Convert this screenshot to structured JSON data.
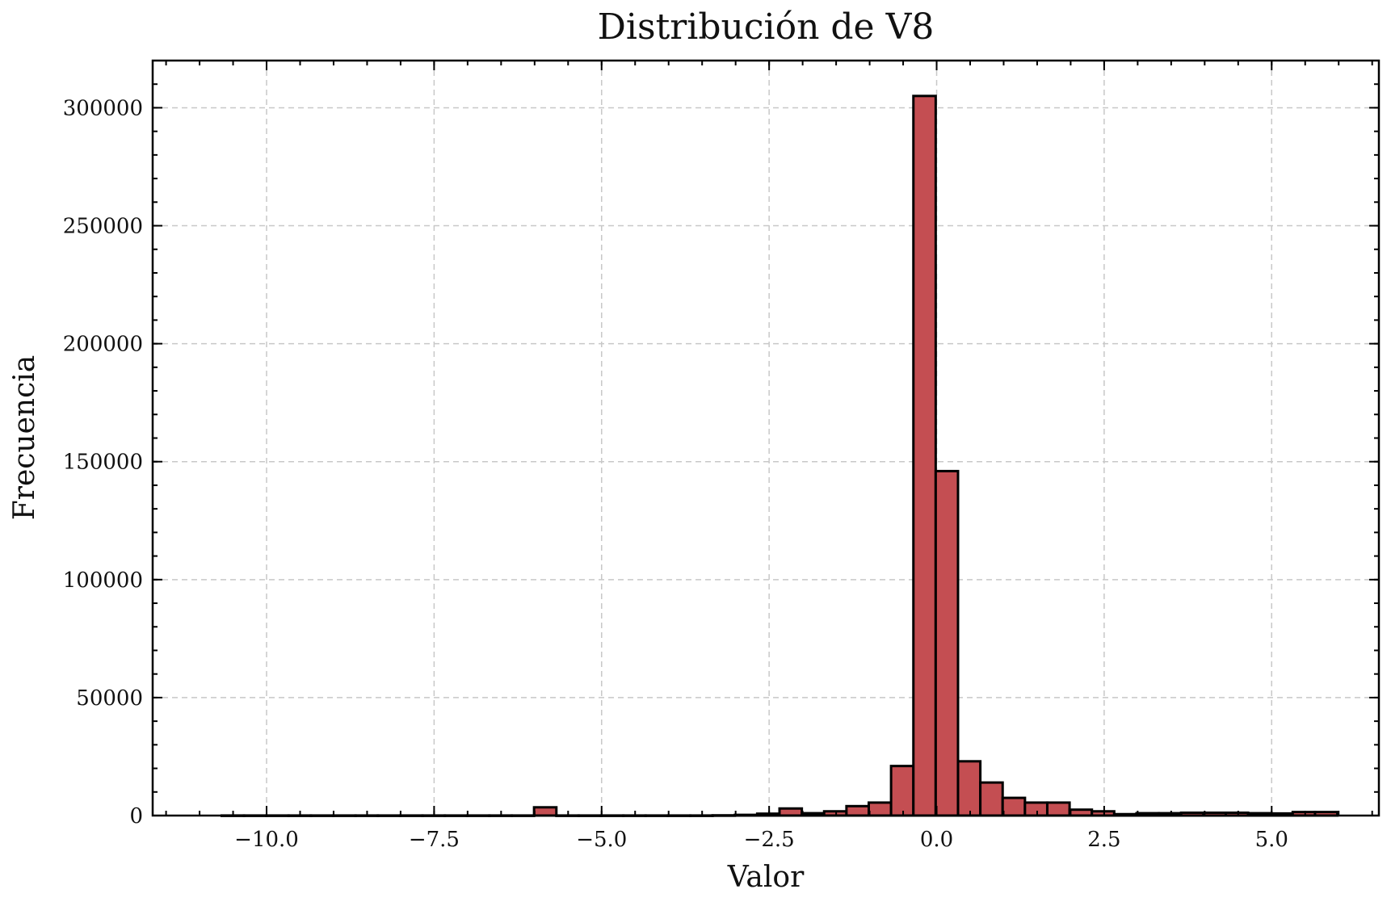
{
  "chart_data": {
    "type": "bar",
    "title": "Distribución de V8",
    "xlabel": "Valor",
    "ylabel": "Frecuencia",
    "xlim": [
      -11.7,
      6.6
    ],
    "ylim": [
      0,
      320000
    ],
    "grid": true,
    "bar_color": "#c44e52",
    "edge_color": "#000000",
    "xticks": [
      -10.0,
      -7.5,
      -5.0,
      -2.5,
      0.0,
      2.5,
      5.0
    ],
    "xtick_labels": [
      "−10.0",
      "−7.5",
      "−5.0",
      "−2.5",
      "0.0",
      "2.5",
      "5.0"
    ],
    "yticks": [
      0,
      50000,
      100000,
      150000,
      200000,
      250000,
      300000
    ],
    "ytick_labels": [
      "0",
      "50000",
      "100000",
      "150000",
      "200000",
      "250000",
      "300000"
    ],
    "bin_width": 0.333,
    "bins": [
      {
        "x0": -10.67,
        "x1": -10.337,
        "count": 30
      },
      {
        "x0": -10.337,
        "x1": -10.004,
        "count": 30
      },
      {
        "x0": -10.004,
        "x1": -9.671,
        "count": 30
      },
      {
        "x0": -9.671,
        "x1": -9.338,
        "count": 30
      },
      {
        "x0": -9.338,
        "x1": -9.005,
        "count": 30
      },
      {
        "x0": -9.005,
        "x1": -8.672,
        "count": 30
      },
      {
        "x0": -8.672,
        "x1": -8.339,
        "count": 30
      },
      {
        "x0": -8.339,
        "x1": -8.006,
        "count": 30
      },
      {
        "x0": -8.006,
        "x1": -7.673,
        "count": 30
      },
      {
        "x0": -7.673,
        "x1": -7.34,
        "count": 30
      },
      {
        "x0": -7.34,
        "x1": -7.007,
        "count": 30
      },
      {
        "x0": -7.007,
        "x1": -6.674,
        "count": 30
      },
      {
        "x0": -6.674,
        "x1": -6.341,
        "count": 30
      },
      {
        "x0": -6.341,
        "x1": -6.008,
        "count": 30
      },
      {
        "x0": -6.008,
        "x1": -5.675,
        "count": 3500
      },
      {
        "x0": -5.675,
        "x1": -5.342,
        "count": 30
      },
      {
        "x0": -5.342,
        "x1": -5.009,
        "count": 30
      },
      {
        "x0": -5.009,
        "x1": -4.676,
        "count": 30
      },
      {
        "x0": -4.676,
        "x1": -4.343,
        "count": 30
      },
      {
        "x0": -4.343,
        "x1": -4.01,
        "count": 30
      },
      {
        "x0": -4.01,
        "x1": -3.677,
        "count": 30
      },
      {
        "x0": -3.677,
        "x1": -3.344,
        "count": 30
      },
      {
        "x0": -3.344,
        "x1": -3.011,
        "count": 100
      },
      {
        "x0": -3.011,
        "x1": -2.678,
        "count": 300
      },
      {
        "x0": -2.678,
        "x1": -2.345,
        "count": 800
      },
      {
        "x0": -2.345,
        "x1": -2.012,
        "count": 3000
      },
      {
        "x0": -2.012,
        "x1": -1.679,
        "count": 1000
      },
      {
        "x0": -1.679,
        "x1": -1.346,
        "count": 1800
      },
      {
        "x0": -1.346,
        "x1": -1.013,
        "count": 4000
      },
      {
        "x0": -1.013,
        "x1": -0.68,
        "count": 5500
      },
      {
        "x0": -0.68,
        "x1": -0.347,
        "count": 21000
      },
      {
        "x0": -0.347,
        "x1": -0.014,
        "count": 305000
      },
      {
        "x0": -0.014,
        "x1": 0.319,
        "count": 146000
      },
      {
        "x0": 0.319,
        "x1": 0.652,
        "count": 23000
      },
      {
        "x0": 0.652,
        "x1": 0.985,
        "count": 14000
      },
      {
        "x0": 0.985,
        "x1": 1.318,
        "count": 7500
      },
      {
        "x0": 1.318,
        "x1": 1.651,
        "count": 5500
      },
      {
        "x0": 1.651,
        "x1": 1.984,
        "count": 5500
      },
      {
        "x0": 1.984,
        "x1": 2.317,
        "count": 2500
      },
      {
        "x0": 2.317,
        "x1": 2.65,
        "count": 1800
      },
      {
        "x0": 2.65,
        "x1": 2.983,
        "count": 600
      },
      {
        "x0": 2.983,
        "x1": 3.316,
        "count": 1000
      },
      {
        "x0": 3.316,
        "x1": 3.649,
        "count": 1000
      },
      {
        "x0": 3.649,
        "x1": 3.982,
        "count": 1200
      },
      {
        "x0": 3.982,
        "x1": 4.315,
        "count": 1200
      },
      {
        "x0": 4.315,
        "x1": 4.648,
        "count": 1200
      },
      {
        "x0": 4.648,
        "x1": 4.981,
        "count": 1000
      },
      {
        "x0": 4.981,
        "x1": 5.314,
        "count": 900
      },
      {
        "x0": 5.314,
        "x1": 5.647,
        "count": 1500
      },
      {
        "x0": 5.647,
        "x1": 5.98,
        "count": 1500
      }
    ]
  }
}
